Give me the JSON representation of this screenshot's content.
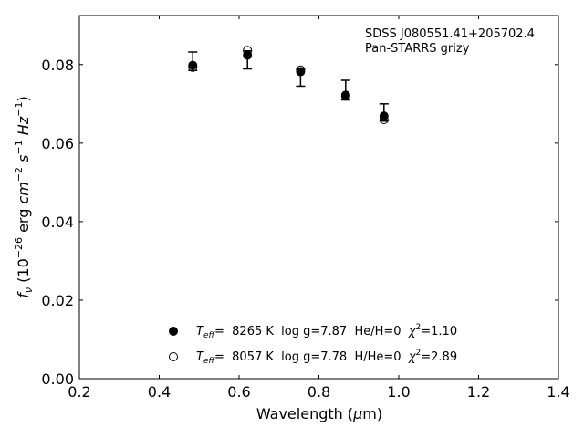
{
  "chart_data": {
    "type": "scatter",
    "annotation": {
      "line1": "SDSS J080551.41+205702.4",
      "line2": "Pan-STARRS grizy"
    },
    "xlabel": {
      "main": "Wavelength (",
      "mu": "μ",
      "tail": "m)"
    },
    "ylabel": {
      "f": "f",
      "nu": "ν",
      "open": " (10",
      "exp1": "−26",
      "mid": " erg ",
      "cm": "cm",
      "exp2": "−2",
      "s": "s",
      "exp3": "−1",
      "hz": "Hz",
      "exp4": "−1",
      "close": ")"
    },
    "xlim": [
      0.2,
      1.4
    ],
    "ylim": [
      0.0,
      0.0925
    ],
    "xticks": [
      0.2,
      0.4,
      0.6,
      0.8,
      1.0,
      1.2,
      1.4
    ],
    "xtick_labels": [
      "0.2",
      "0.4",
      "0.6",
      "0.8",
      "1.0",
      "1.2",
      "1.4"
    ],
    "yticks": [
      0.0,
      0.02,
      0.04,
      0.06,
      0.08
    ],
    "ytick_labels": [
      "0.00",
      "0.02",
      "0.04",
      "0.06",
      "0.08"
    ],
    "grid": false,
    "observed": {
      "name": "Pan-STARRS grizy",
      "points": [
        {
          "x": 0.484,
          "y": 0.0797,
          "ylo": 0.0785,
          "yhi": 0.0832
        },
        {
          "x": 0.621,
          "y": 0.0822,
          "ylo": 0.0789,
          "yhi": 0.0835
        },
        {
          "x": 0.754,
          "y": 0.0783,
          "ylo": 0.0745,
          "yhi": 0.079
        },
        {
          "x": 0.867,
          "y": 0.0721,
          "ylo": 0.071,
          "yhi": 0.076
        },
        {
          "x": 0.963,
          "y": 0.0668,
          "ylo": 0.0656,
          "yhi": 0.07
        }
      ]
    },
    "series": [
      {
        "marker": "filled",
        "legend": {
          "t": "T",
          "eff": "eff",
          "eq": "=  8265 K  log g=7.87  He/H=0  ",
          "chi": "χ",
          "sq": "2",
          "tail": "=1.10"
        },
        "x": [
          0.484,
          0.621,
          0.754,
          0.867,
          0.963
        ],
        "y": [
          0.0798,
          0.0824,
          0.0782,
          0.0722,
          0.0669
        ]
      },
      {
        "marker": "open",
        "legend": {
          "t": "T",
          "eff": "eff",
          "eq": "=  8057 K  log g=7.78  H/He=0  ",
          "chi": "χ",
          "sq": "2",
          "tail": "=2.89"
        },
        "x": [
          0.484,
          0.621,
          0.754,
          0.867,
          0.963
        ],
        "y": [
          0.0793,
          0.0836,
          0.0786,
          0.072,
          0.066
        ]
      }
    ],
    "colors": {
      "marker": "#000000",
      "axes": "#000000",
      "background": "#ffffff"
    }
  }
}
